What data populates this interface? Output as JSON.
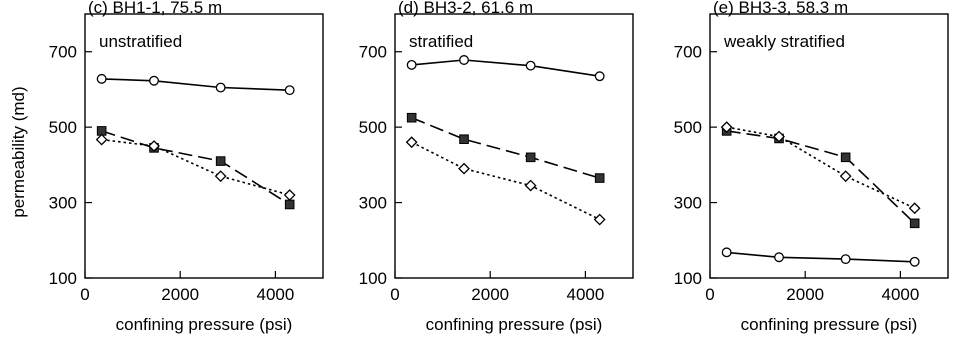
{
  "y_axis_label": "permeability (md)",
  "chart_data": [
    {
      "type": "line",
      "title": "(c) BH1-1, 75.5 m",
      "annotation": "unstratified",
      "xlabel": "confining pressure (psi)",
      "xlim": [
        0,
        5000
      ],
      "ylim": [
        100,
        800
      ],
      "xticks": [
        0,
        2000,
        4000
      ],
      "yticks": [
        100,
        300,
        500,
        700
      ],
      "series": [
        {
          "marker": "circle-open",
          "line": "solid",
          "x": [
            350,
            1450,
            2850,
            4300
          ],
          "y": [
            628,
            623,
            605,
            598
          ]
        },
        {
          "marker": "square-filled",
          "line": "long-dash",
          "x": [
            350,
            1450,
            2850,
            4300
          ],
          "y": [
            490,
            445,
            410,
            295
          ]
        },
        {
          "marker": "diamond-open",
          "line": "dotted",
          "x": [
            350,
            1450,
            2850,
            4300
          ],
          "y": [
            467,
            450,
            370,
            320
          ]
        }
      ]
    },
    {
      "type": "line",
      "title": "(d) BH3-2, 61.6 m",
      "annotation": "stratified",
      "xlabel": "confining pressure (psi)",
      "xlim": [
        0,
        5000
      ],
      "ylim": [
        100,
        800
      ],
      "xticks": [
        0,
        2000,
        4000
      ],
      "yticks": [
        100,
        300,
        500,
        700
      ],
      "series": [
        {
          "marker": "circle-open",
          "line": "solid",
          "x": [
            350,
            1450,
            2850,
            4300
          ],
          "y": [
            665,
            678,
            663,
            635
          ]
        },
        {
          "marker": "square-filled",
          "line": "long-dash",
          "x": [
            350,
            1450,
            2850,
            4300
          ],
          "y": [
            525,
            468,
            420,
            365
          ]
        },
        {
          "marker": "diamond-open",
          "line": "dotted",
          "x": [
            350,
            1450,
            2850,
            4300
          ],
          "y": [
            460,
            390,
            345,
            255
          ]
        }
      ]
    },
    {
      "type": "line",
      "title": "(e) BH3-3, 58.3 m",
      "annotation": "weakly stratified",
      "xlabel": "confining pressure (psi)",
      "xlim": [
        0,
        5000
      ],
      "ylim": [
        100,
        800
      ],
      "xticks": [
        0,
        2000,
        4000
      ],
      "yticks": [
        100,
        300,
        500,
        700
      ],
      "series": [
        {
          "marker": "circle-open",
          "line": "solid",
          "x": [
            350,
            1450,
            2850,
            4300
          ],
          "y": [
            168,
            155,
            150,
            143
          ]
        },
        {
          "marker": "square-filled",
          "line": "long-dash",
          "x": [
            350,
            1450,
            2850,
            4300
          ],
          "y": [
            490,
            470,
            420,
            245
          ]
        },
        {
          "marker": "diamond-open",
          "line": "dotted",
          "x": [
            350,
            1450,
            2850,
            4300
          ],
          "y": [
            500,
            475,
            370,
            285
          ]
        }
      ]
    }
  ]
}
